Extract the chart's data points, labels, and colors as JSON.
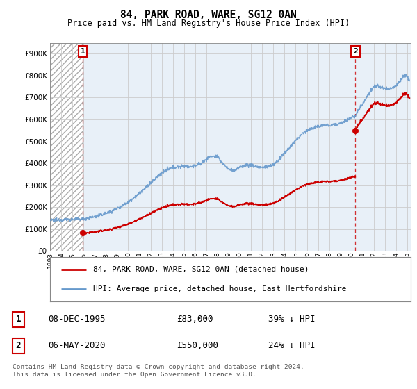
{
  "title": "84, PARK ROAD, WARE, SG12 0AN",
  "subtitle": "Price paid vs. HM Land Registry's House Price Index (HPI)",
  "ylim": [
    0,
    950000
  ],
  "yticks": [
    0,
    100000,
    200000,
    300000,
    400000,
    500000,
    600000,
    700000,
    800000,
    900000
  ],
  "ytick_labels": [
    "£0",
    "£100K",
    "£200K",
    "£300K",
    "£400K",
    "£500K",
    "£600K",
    "£700K",
    "£800K",
    "£900K"
  ],
  "xmin_year": 1993,
  "xmax_year": 2025.3,
  "xticks": [
    1993,
    1994,
    1995,
    1996,
    1997,
    1998,
    1999,
    2000,
    2001,
    2002,
    2003,
    2004,
    2005,
    2006,
    2007,
    2008,
    2009,
    2010,
    2011,
    2012,
    2013,
    2014,
    2015,
    2016,
    2017,
    2018,
    2019,
    2020,
    2021,
    2022,
    2023,
    2024,
    2025
  ],
  "hatch_region_end": 1995.92,
  "transaction1_x": 1995.92,
  "transaction1_y": 83000,
  "transaction1_label": "1",
  "transaction1_date": "08-DEC-1995",
  "transaction1_price": "£83,000",
  "transaction1_hpi": "39% ↓ HPI",
  "transaction2_x": 2020.35,
  "transaction2_y": 550000,
  "transaction2_label": "2",
  "transaction2_date": "06-MAY-2020",
  "transaction2_price": "£550,000",
  "transaction2_hpi": "24% ↓ HPI",
  "line1_color": "#cc0000",
  "line2_color": "#6699cc",
  "grid_color": "#cccccc",
  "plot_bg_color": "#e8f0f8",
  "fig_bg_color": "#ffffff",
  "legend1_label": "84, PARK ROAD, WARE, SG12 0AN (detached house)",
  "legend2_label": "HPI: Average price, detached house, East Hertfordshire",
  "footnote": "Contains HM Land Registry data © Crown copyright and database right 2024.\nThis data is licensed under the Open Government Licence v3.0."
}
